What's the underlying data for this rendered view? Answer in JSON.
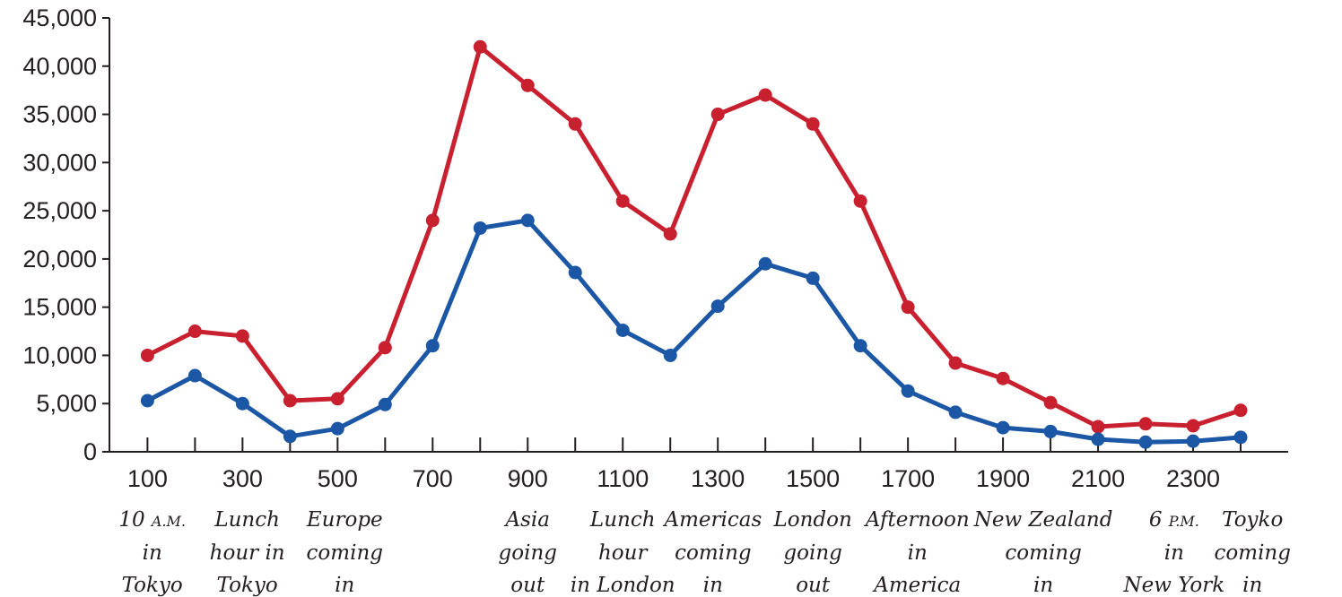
{
  "chart_data": {
    "type": "line",
    "title": "",
    "xlabel": "",
    "ylabel": "",
    "x": [
      100,
      200,
      300,
      400,
      500,
      600,
      700,
      800,
      900,
      1000,
      1100,
      1200,
      1300,
      1400,
      1500,
      1600,
      1700,
      1800,
      1900,
      2000,
      2100,
      2200,
      2300,
      2400
    ],
    "xlim": [
      20,
      2500
    ],
    "ylim": [
      0,
      45000
    ],
    "x_ticks": [
      100,
      200,
      300,
      400,
      500,
      600,
      700,
      800,
      900,
      1000,
      1100,
      1200,
      1300,
      1400,
      1500,
      1600,
      1700,
      1800,
      1900,
      2000,
      2100,
      2200,
      2300,
      2400
    ],
    "x_tick_labels": [
      {
        "x": 100,
        "label": "100"
      },
      {
        "x": 300,
        "label": "300"
      },
      {
        "x": 500,
        "label": "500"
      },
      {
        "x": 700,
        "label": "700"
      },
      {
        "x": 900,
        "label": "900"
      },
      {
        "x": 1100,
        "label": "1100"
      },
      {
        "x": 1300,
        "label": "1300"
      },
      {
        "x": 1500,
        "label": "1500"
      },
      {
        "x": 1700,
        "label": "1700"
      },
      {
        "x": 1900,
        "label": "1900"
      },
      {
        "x": 2100,
        "label": "2100"
      },
      {
        "x": 2300,
        "label": "2300"
      }
    ],
    "y_ticks": [
      {
        "y": 0,
        "label": "0"
      },
      {
        "y": 5000,
        "label": "5,000"
      },
      {
        "y": 10000,
        "label": "10,000"
      },
      {
        "y": 15000,
        "label": "15,000"
      },
      {
        "y": 20000,
        "label": "20,000"
      },
      {
        "y": 25000,
        "label": "25,000"
      },
      {
        "y": 30000,
        "label": "30,000"
      },
      {
        "y": 35000,
        "label": "35,000"
      },
      {
        "y": 40000,
        "label": "40,000"
      },
      {
        "y": 45000,
        "label": "45,000"
      }
    ],
    "grid": false,
    "legend": "none",
    "series": [
      {
        "color": "#c8202f",
        "values": [
          10000,
          12500,
          12000,
          5300,
          5500,
          10800,
          24000,
          42000,
          38000,
          34000,
          26000,
          22600,
          35000,
          37000,
          34000,
          26000,
          15000,
          9200,
          7600,
          5100,
          2600,
          2900,
          2700,
          4300
        ]
      },
      {
        "color": "#1b57a5",
        "values": [
          5300,
          7900,
          5000,
          1600,
          2400,
          4900,
          11000,
          23200,
          24000,
          18600,
          12600,
          10000,
          15100,
          19500,
          18000,
          11000,
          6300,
          4100,
          2500,
          2100,
          1300,
          1000,
          1100,
          1500
        ]
      }
    ],
    "annotations": [
      {
        "x": 110,
        "lines": [
          "10 A.M.",
          "in",
          "Tokyo"
        ]
      },
      {
        "x": 310,
        "lines": [
          "Lunch",
          "hour in",
          "Tokyo"
        ]
      },
      {
        "x": 515,
        "lines": [
          "Europe",
          "coming",
          "in"
        ]
      },
      {
        "x": 900,
        "lines": [
          "Asia",
          "going",
          "out"
        ]
      },
      {
        "x": 1100,
        "lines": [
          "Lunch",
          "hour",
          "in London"
        ]
      },
      {
        "x": 1290,
        "lines": [
          "Americas",
          "coming",
          "in"
        ]
      },
      {
        "x": 1500,
        "lines": [
          "London",
          "going",
          "out"
        ]
      },
      {
        "x": 1720,
        "lines": [
          "Afternoon",
          "in",
          "America"
        ]
      },
      {
        "x": 1985,
        "lines": [
          "New Zealand",
          "coming",
          "in"
        ]
      },
      {
        "x": 2260,
        "lines": [
          "6 P.M.",
          "in",
          "New York"
        ]
      },
      {
        "x": 2425,
        "lines": [
          "Toyko",
          "coming",
          "in"
        ]
      }
    ]
  }
}
